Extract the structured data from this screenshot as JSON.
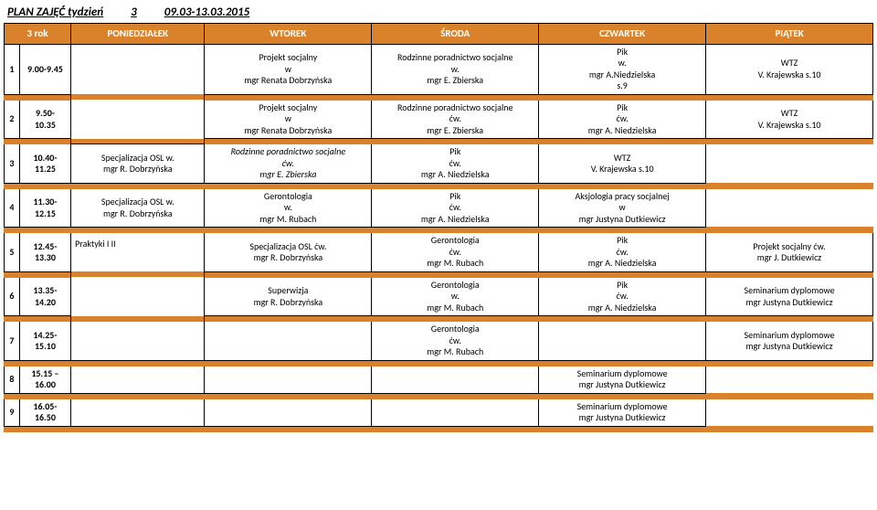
{
  "title": {
    "plan": "PLAN ZAJĘĆ tydzień",
    "week": "3",
    "dates": "09.03-13.03.2015"
  },
  "header": {
    "year": "3 rok",
    "mon": "PONIEDZIAŁEK",
    "tue": "WTOREK",
    "wed": "ŚRODA",
    "thu": "CZWARTEK",
    "fri": "PIĄTEK"
  },
  "rows": [
    {
      "n": "1",
      "time": "9.00-9.45",
      "tue": "Projekt socjalny\nw\nmgr Renata Dobrzyńska",
      "wed": "Rodzinne poradnictwo socjalne\nw.\nmgr E. Zbierska",
      "thu": "Pik\nw.\nmgr A.Niedzielska\ns.9",
      "fri": "WTZ\nV. Krajewska s.10"
    },
    {
      "n": "2",
      "time": "9.50-\n10.35",
      "tue": "Projekt socjalny\nw\nmgr Renata Dobrzyńska",
      "wed": "Rodzinne poradnictwo socjalne\nćw.\nmgr E. Zbierska",
      "thu": "Pik\nćw.\nmgr A. Niedzielska",
      "fri": "WTZ\nV. Krajewska s.10"
    },
    {
      "n": "3",
      "time": "10.40-\n11.25",
      "tue": "Specjalizacja OSL w.\nmgr R. Dobrzyńska",
      "wed": "Rodzinne poradnictwo socjalne\nćw.\nmgr E. Zbierska",
      "wed_ital": true,
      "thu": "Pik\nćw.\nmgr A. Niedzielska",
      "fri": "WTZ\nV. Krajewska s.10"
    },
    {
      "n": "4",
      "time": "11.30-\n12.15",
      "tue": "Specjalizacja OSL w.\nmgr R. Dobrzyńska",
      "wed": "Gerontologia\nw.\nmgr M. Rubach",
      "thu": "Pik\nćw.\nmgr A. Niedzielska",
      "fri": "Aksjologia pracy socjalnej\nw\nmgr Justyna Dutkiewicz"
    },
    {
      "n": "5",
      "time": "12.45-\n13.30",
      "mon": "Praktyki I II",
      "tue": "Specjalizacja OSL ćw.\nmgr R. Dobrzyńska",
      "wed": "Gerontologia\nćw.\nmgr M. Rubach",
      "thu": "Pik\nćw.\nmgr A. Niedzielska",
      "fri": "Projekt socjalny ćw.\nmgr J. Dutkiewicz"
    },
    {
      "n": "6",
      "time": "13.35-\n14.20",
      "tue": "Superwizja\nmgr R. Dobrzyńska",
      "wed": "Gerontologia\nw.\nmgr M. Rubach",
      "thu": "Pik\nćw.\nmgr A. Niedzielska",
      "fri": "Seminarium dyplomowe\nmgr Justyna Dutkiewicz"
    },
    {
      "n": "7",
      "time": "14.25-\n15.10",
      "tue": "",
      "wed": "Gerontologia\nćw.\nmgr M. Rubach",
      "thu": "",
      "fri": "Seminarium dyplomowe\nmgr Justyna Dutkiewicz"
    },
    {
      "n": "8",
      "time": "15.15 –\n16.00",
      "tue": "",
      "wed": "",
      "thu": "",
      "fri": "Seminarium dyplomowe\nmgr Justyna Dutkiewicz"
    },
    {
      "n": "9",
      "time": "16.05-\n16.50",
      "tue": "",
      "wed": "",
      "thu": "",
      "fri": "Seminarium dyplomowe\nmgr Justyna Dutkiewicz"
    }
  ],
  "colors": {
    "header_bg": "#d9822b",
    "header_fg": "#ffffff",
    "border": "#000000"
  }
}
